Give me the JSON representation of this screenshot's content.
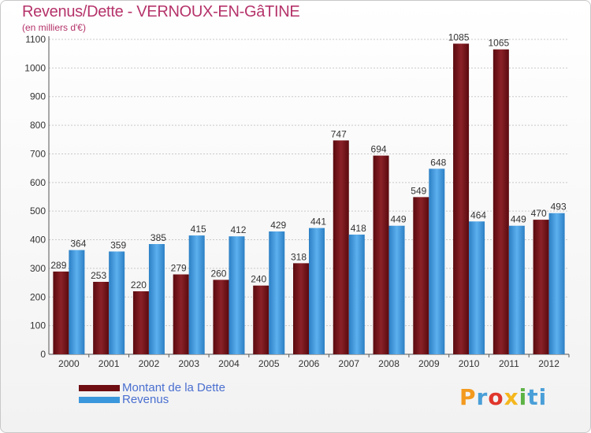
{
  "title": "Revenus/Dette - VERNOUX-EN-GâTINE",
  "subtitle": "(en milliers d'€)",
  "logo": [
    "P",
    "r",
    "o",
    "x",
    "i",
    "ti"
  ],
  "colors": {
    "dette": "#6e0d12",
    "revenus": "#3b97dc",
    "grid": "#c9c9c9",
    "axis": "#555555",
    "label": "#333333"
  },
  "chart_data": {
    "type": "bar",
    "title": "Revenus/Dette - VERNOUX-EN-GâTINE",
    "ylabel": "(en milliers d'€)",
    "categories": [
      "2000",
      "2001",
      "2002",
      "2003",
      "2004",
      "2005",
      "2006",
      "2007",
      "2008",
      "2009",
      "2010",
      "2011",
      "2012"
    ],
    "series": [
      {
        "name": "Montant de la Dette",
        "values": [
          289,
          253,
          220,
          279,
          260,
          240,
          318,
          747,
          694,
          549,
          1085,
          1065,
          470
        ]
      },
      {
        "name": "Revenus",
        "values": [
          364,
          359,
          385,
          415,
          412,
          429,
          441,
          418,
          449,
          648,
          464,
          449,
          493
        ]
      }
    ],
    "ylim": [
      0,
      1100
    ],
    "yticks": [
      0,
      100,
      200,
      300,
      400,
      500,
      600,
      700,
      800,
      900,
      1000,
      1100
    ],
    "grid": true,
    "legend": "bottom-left"
  }
}
